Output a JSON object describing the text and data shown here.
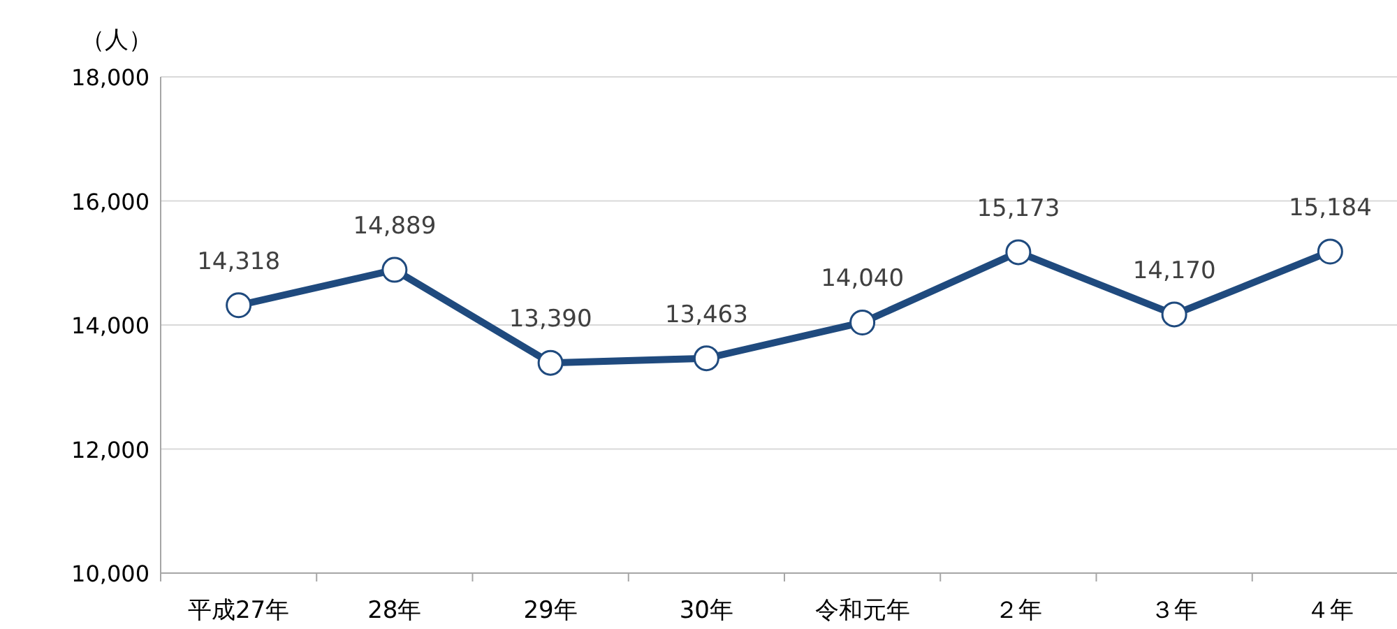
{
  "chart_data": {
    "type": "line",
    "ylabel": "（人）",
    "categories": [
      "平成27年",
      "28年",
      "29年",
      "30年",
      "令和元年",
      "２年",
      "３年",
      "４年"
    ],
    "series": [
      {
        "color": "#1f4a7e",
        "values": [
          14318,
          14889,
          13390,
          13463,
          14040,
          15173,
          14170,
          15184
        ],
        "value_labels": [
          "14,318",
          "14,889",
          "13,390",
          "13,463",
          "14,040",
          "15,173",
          "14,170",
          "15,184"
        ]
      }
    ],
    "ylim": [
      10000,
      18000
    ],
    "yticks": [
      {
        "value": 10000,
        "label": "10,000"
      },
      {
        "value": 12000,
        "label": "12,000"
      },
      {
        "value": 14000,
        "label": "14,000"
      },
      {
        "value": 16000,
        "label": "16,000"
      },
      {
        "value": 18000,
        "label": "18,000"
      }
    ],
    "grid": "y",
    "marker": "circle",
    "line_style": "solid"
  }
}
